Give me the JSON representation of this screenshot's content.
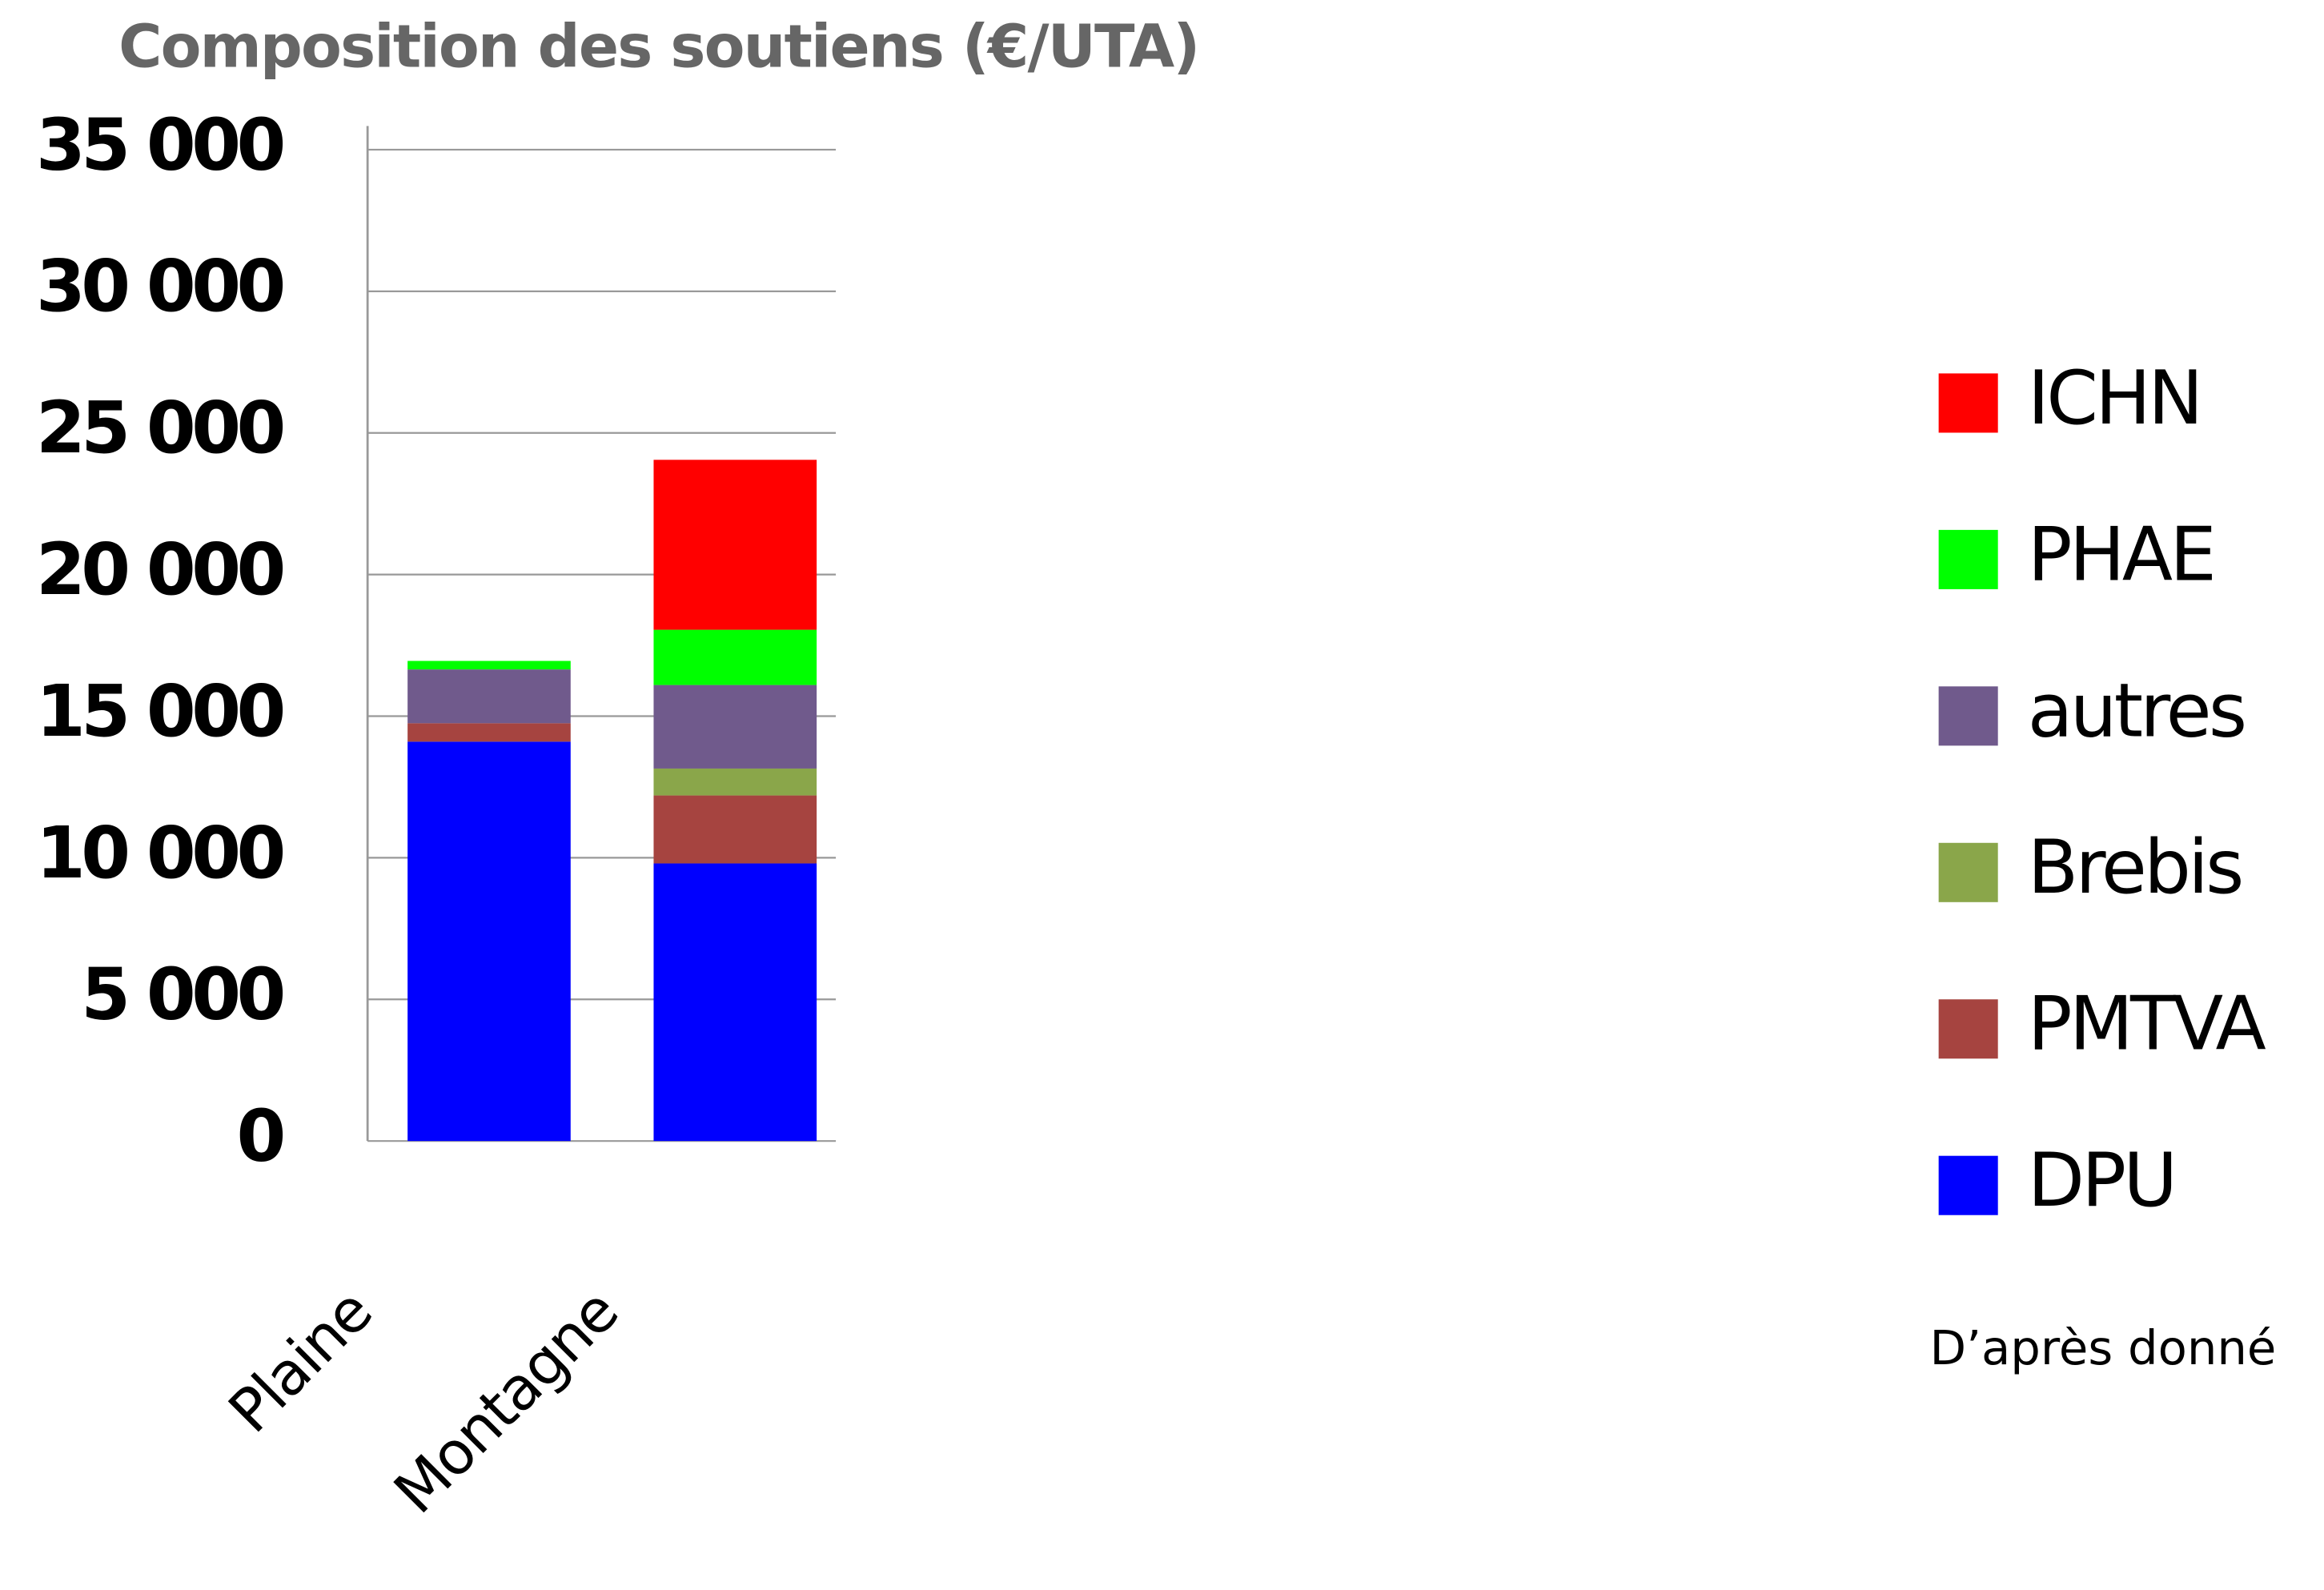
{
  "chart_data": {
    "type": "stacked_bar",
    "title": "Composition des soutiens (€/UTA)",
    "categories": [
      "Plaine",
      "Montagne"
    ],
    "series": [
      {
        "name": "DPU",
        "color": "#0000ff",
        "values": [
          14100,
          9800
        ]
      },
      {
        "name": "PMTVA",
        "color": "#a64440",
        "values": [
          650,
          2400
        ]
      },
      {
        "name": "Brebis",
        "color": "#8aa64a",
        "values": [
          0,
          950
        ]
      },
      {
        "name": "autres",
        "color": "#705a8c",
        "values": [
          1900,
          2950
        ]
      },
      {
        "name": "PHAE",
        "color": "#00ff00",
        "values": [
          300,
          1950
        ]
      },
      {
        "name": "ICHN",
        "color": "#ff0000",
        "values": [
          0,
          6000
        ]
      }
    ],
    "ylim": [
      0,
      35000
    ],
    "yticks": [
      0,
      {
        "value": 5000,
        "label": "5 000"
      },
      {
        "value": 10000,
        "label": "10 000"
      },
      {
        "value": 15000,
        "label": "15 000"
      },
      {
        "value": 20000,
        "label": "20 000"
      },
      {
        "value": 25000,
        "label": "25 000"
      },
      {
        "value": 30000,
        "label": "30 000"
      },
      {
        "value": 35000,
        "label": "35 000"
      }
    ],
    "grid": true,
    "legend": "right",
    "source": "D’après donné"
  }
}
